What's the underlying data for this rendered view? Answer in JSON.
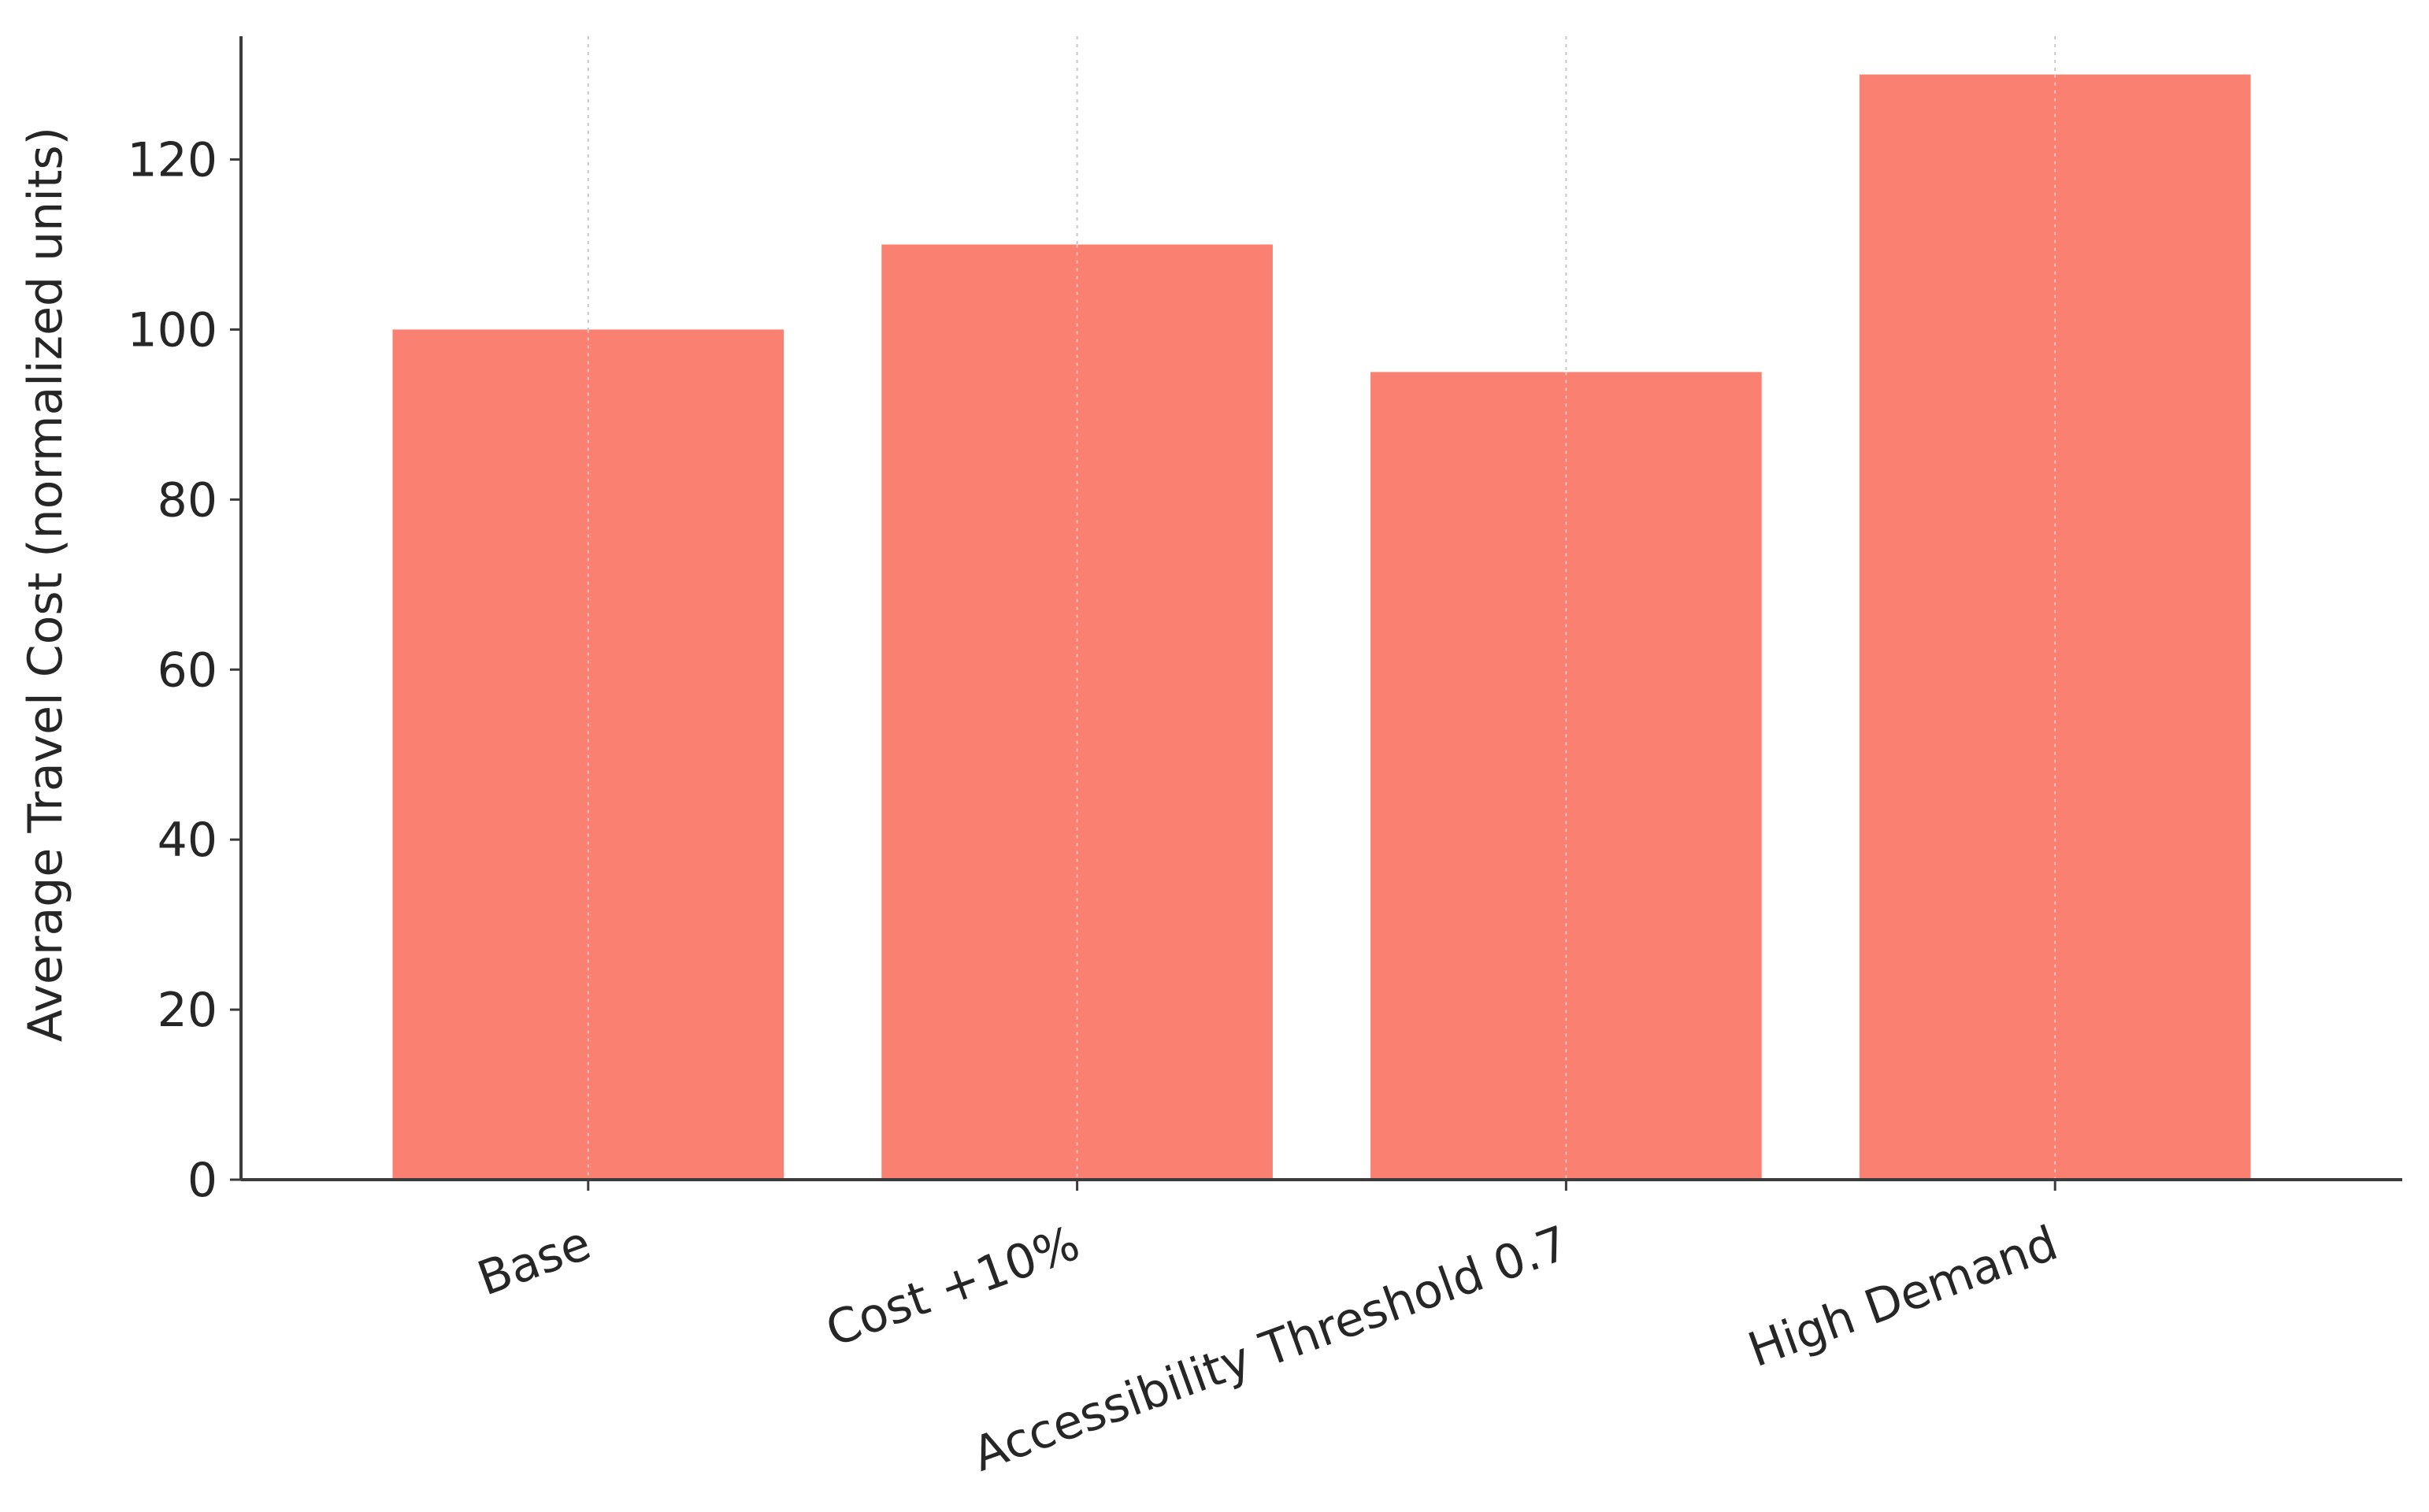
{
  "chart_data": {
    "type": "bar",
    "categories": [
      "Base",
      "Cost +10%",
      "Accessibility Threshold 0.7",
      "High Demand"
    ],
    "values": [
      100,
      110,
      95,
      130
    ],
    "title": "",
    "xlabel": "",
    "ylabel": "Average Travel Cost (normalized units)",
    "ylim": [
      0,
      134.5
    ],
    "yticks": [
      0,
      20,
      40,
      60,
      80,
      100,
      120
    ],
    "grid": "x-dotted",
    "bar_color": "#fa8072",
    "grid_color": "#c8c8c8",
    "axis_color": "#3c3c3c",
    "text_color": "#262626"
  }
}
